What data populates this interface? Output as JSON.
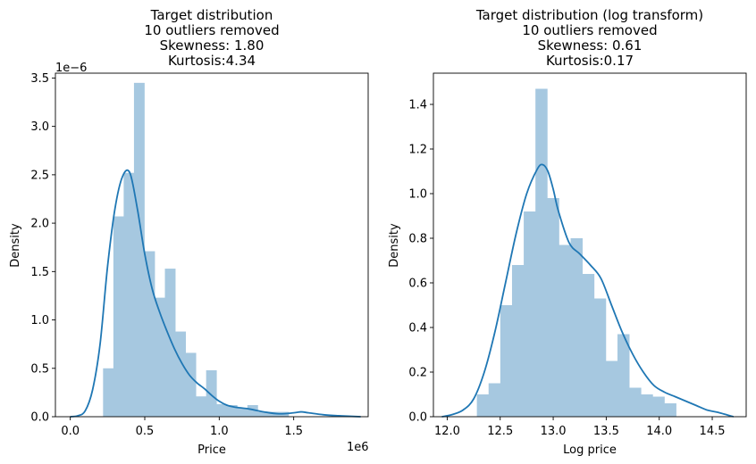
{
  "chart_data": [
    {
      "type": "bar",
      "subtype": "histogram-with-kde",
      "title": [
        "Target distribution",
        "10 outliers removed",
        "Skewness: 1.80",
        "Kurtosis:4.34"
      ],
      "xlabel": "Price",
      "ylabel": "Density",
      "x_offset_label": "1e6",
      "y_offset_label": "1e−6",
      "xlim": [
        -0.1,
        2.0
      ],
      "ylim": [
        0,
        3.55
      ],
      "xticks": [
        0.0,
        0.5,
        1.0,
        1.5
      ],
      "xtick_labels": [
        "0.0",
        "0.5",
        "1.0",
        "1.5"
      ],
      "yticks": [
        0.0,
        0.5,
        1.0,
        1.5,
        2.0,
        2.5,
        3.0,
        3.5
      ],
      "ytick_labels": [
        "0.0",
        "0.5",
        "1.0",
        "1.5",
        "2.0",
        "2.5",
        "3.0",
        "3.5"
      ],
      "bin_start": 0.22,
      "bin_width": 0.0692,
      "bin_counts_density": [
        0.5,
        2.07,
        2.52,
        3.45,
        1.71,
        1.23,
        1.53,
        0.88,
        0.66,
        0.21,
        0.48,
        0.13,
        0.12,
        0.09,
        0.12,
        0.05,
        0.05,
        0.05
      ],
      "kde": {
        "x": [
          0.0,
          0.05,
          0.1,
          0.15,
          0.2,
          0.25,
          0.3,
          0.35,
          0.4,
          0.45,
          0.5,
          0.55,
          0.6,
          0.65,
          0.7,
          0.75,
          0.8,
          0.85,
          0.9,
          0.95,
          1.0,
          1.05,
          1.1,
          1.2,
          1.3,
          1.4,
          1.5,
          1.55,
          1.6,
          1.7,
          1.8,
          1.95
        ],
        "y": [
          0.0,
          0.01,
          0.06,
          0.28,
          0.75,
          1.55,
          2.15,
          2.48,
          2.52,
          2.15,
          1.68,
          1.32,
          1.08,
          0.88,
          0.7,
          0.55,
          0.43,
          0.35,
          0.29,
          0.22,
          0.16,
          0.12,
          0.1,
          0.08,
          0.05,
          0.03,
          0.04,
          0.05,
          0.04,
          0.02,
          0.01,
          0.0
        ]
      }
    },
    {
      "type": "bar",
      "subtype": "histogram-with-kde",
      "title": [
        "Target distribution (log transform)",
        "10 outliers removed",
        "Skewness: 0.61",
        "Kurtosis:0.17"
      ],
      "xlabel": "Log price",
      "ylabel": "Density",
      "xlim": [
        11.87,
        14.82
      ],
      "ylim": [
        0,
        1.54
      ],
      "xticks": [
        12.0,
        12.5,
        13.0,
        13.5,
        14.0,
        14.5
      ],
      "xtick_labels": [
        "12.0",
        "12.5",
        "13.0",
        "13.5",
        "14.0",
        "14.5"
      ],
      "yticks": [
        0.0,
        0.2,
        0.4,
        0.6,
        0.8,
        1.0,
        1.2,
        1.4
      ],
      "ytick_labels": [
        "0.0",
        "0.2",
        "0.4",
        "0.6",
        "0.8",
        "1.0",
        "1.2",
        "1.4"
      ],
      "bin_start": 12.28,
      "bin_width": 0.1105,
      "bin_counts_density": [
        0.1,
        0.15,
        0.5,
        0.68,
        0.92,
        1.47,
        0.98,
        0.77,
        0.8,
        0.64,
        0.53,
        0.25,
        0.37,
        0.13,
        0.1,
        0.09,
        0.06
      ],
      "kde": {
        "x": [
          11.95,
          12.05,
          12.15,
          12.25,
          12.35,
          12.45,
          12.55,
          12.65,
          12.75,
          12.85,
          12.9,
          12.95,
          13.0,
          13.05,
          13.15,
          13.25,
          13.35,
          13.45,
          13.55,
          13.65,
          13.75,
          13.85,
          13.95,
          14.05,
          14.15,
          14.25,
          14.35,
          14.45,
          14.55,
          14.7
        ],
        "y": [
          0.0,
          0.01,
          0.03,
          0.08,
          0.2,
          0.38,
          0.6,
          0.82,
          1.0,
          1.11,
          1.13,
          1.1,
          1.02,
          0.92,
          0.78,
          0.73,
          0.68,
          0.62,
          0.5,
          0.38,
          0.28,
          0.2,
          0.14,
          0.11,
          0.09,
          0.07,
          0.05,
          0.03,
          0.02,
          0.0
        ]
      }
    }
  ]
}
